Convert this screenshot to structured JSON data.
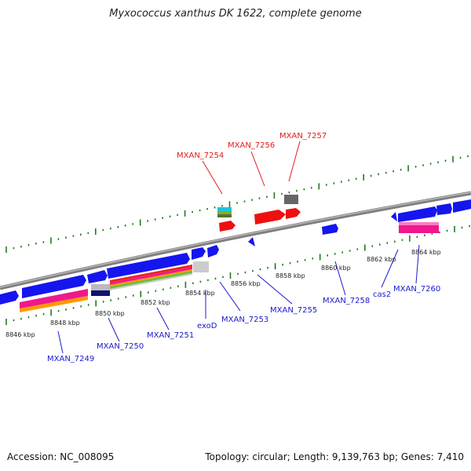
{
  "title": "Myxococcus xanthus DK 1622, complete genome",
  "footer": {
    "accession": "Accession: NC_008095",
    "topology": "Topology: circular; Length: 9,139,763 bp; Genes: 7,410"
  },
  "colors": {
    "forward_gene_label": "#e31a1c",
    "reverse_gene_label": "#1a1acc",
    "backbone": "#8a8a8a",
    "tick": "#1e7a1e"
  },
  "ruler_labels": [
    "8846 kbp",
    "8848 kbp",
    "8850 kbp",
    "8852 kbp",
    "8854 kbp",
    "8856 kbp",
    "8858 kbp",
    "8860 kbp",
    "8862 kbp",
    "8864 kbp"
  ],
  "forward_genes": [
    "MXAN_7254",
    "MXAN_7256",
    "MXAN_7257"
  ],
  "reverse_genes": [
    "MXAN_7249",
    "MXAN_7250",
    "MXAN_7251",
    "exoD",
    "MXAN_7253",
    "MXAN_7255",
    "MXAN_7258",
    "cas2",
    "MXAN_7260"
  ]
}
